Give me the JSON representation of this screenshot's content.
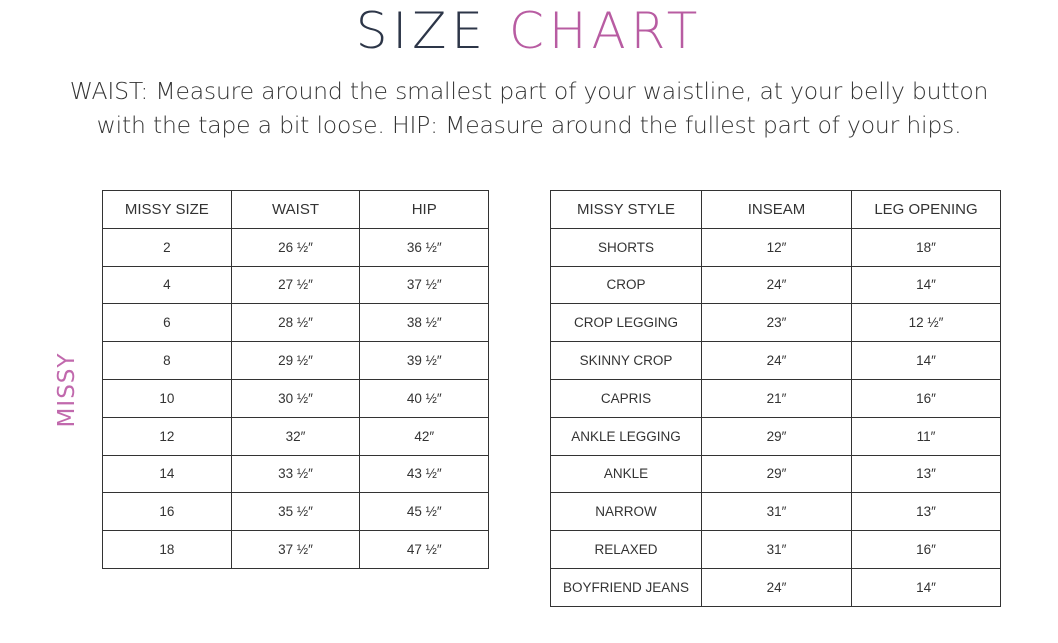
{
  "title": {
    "part1": "SIZE",
    "part2": "CHART",
    "color1": "#2d3648",
    "color2": "#b85ca2"
  },
  "description": {
    "line1": "WAIST: Measure around the smallest part of your waistline, at your belly button",
    "line2": "with the tape a bit loose. HIP: Measure around the fullest part of your hips."
  },
  "side_label": "MISSY",
  "size_table": {
    "headers": [
      "MISSY SIZE",
      "WAIST",
      "HIP"
    ],
    "rows": [
      [
        "2",
        "26 ½″",
        "36 ½″"
      ],
      [
        "4",
        "27 ½″",
        "37 ½″"
      ],
      [
        "6",
        "28 ½″",
        "38 ½″"
      ],
      [
        "8",
        "29 ½″",
        "39 ½″"
      ],
      [
        "10",
        "30 ½″",
        "40 ½″"
      ],
      [
        "12",
        "32″",
        "42″"
      ],
      [
        "14",
        "33 ½″",
        "43 ½″"
      ],
      [
        "16",
        "35 ½″",
        "45 ½″"
      ],
      [
        "18",
        "37 ½″",
        "47 ½″"
      ]
    ]
  },
  "style_table": {
    "headers": [
      "MISSY STYLE",
      "INSEAM",
      "LEG OPENING"
    ],
    "rows": [
      [
        "SHORTS",
        "12″",
        "18″"
      ],
      [
        "CROP",
        "24″",
        "14″"
      ],
      [
        "CROP LEGGING",
        "23″",
        "12 ½″"
      ],
      [
        "SKINNY CROP",
        "24″",
        "14″"
      ],
      [
        "CAPRIS",
        "21″",
        "16″"
      ],
      [
        "ANKLE LEGGING",
        "29″",
        "11″"
      ],
      [
        "ANKLE",
        "29″",
        "13″"
      ],
      [
        "NARROW",
        "31″",
        "13″"
      ],
      [
        "RELAXED",
        "31″",
        "16″"
      ],
      [
        "BOYFRIEND JEANS",
        "24″",
        "14″"
      ]
    ]
  }
}
